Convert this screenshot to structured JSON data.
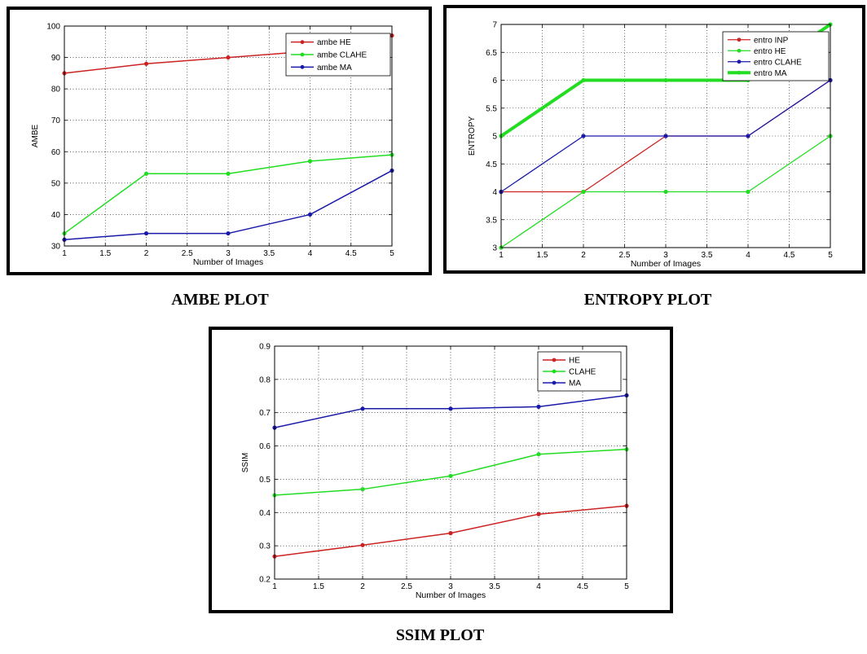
{
  "captions": {
    "ambe": "AMBE PLOT",
    "entropy": "ENTROPY PLOT",
    "ssim": "SSIM PLOT"
  },
  "chart_data": [
    {
      "id": "ambe",
      "type": "line",
      "xlabel": "Number of Images",
      "ylabel": "AMBE",
      "xlim": [
        1,
        5
      ],
      "ylim": [
        30,
        100
      ],
      "xticks": [
        1,
        1.5,
        2,
        2.5,
        3,
        3.5,
        4,
        4.5,
        5
      ],
      "yticks": [
        30,
        40,
        50,
        60,
        70,
        80,
        90,
        100
      ],
      "grid": true,
      "legend_position": "top-right",
      "x": [
        1,
        2,
        3,
        4,
        5
      ],
      "series": [
        {
          "name": "ambe HE",
          "color": "#cc2222",
          "width": 1.5,
          "values": [
            85,
            88,
            90,
            92,
            97
          ]
        },
        {
          "name": "ambe CLAHE",
          "color": "#22dd22",
          "width": 1.5,
          "values": [
            34,
            53,
            53,
            57,
            59
          ]
        },
        {
          "name": "ambe MA",
          "color": "#1a1aaa",
          "width": 1.5,
          "values": [
            32,
            34,
            34,
            40,
            54
          ]
        }
      ]
    },
    {
      "id": "entropy",
      "type": "line",
      "xlabel": "Number of Images",
      "ylabel": "ENTROPY",
      "xlim": [
        1,
        5
      ],
      "ylim": [
        3,
        7
      ],
      "xticks": [
        1,
        1.5,
        2,
        2.5,
        3,
        3.5,
        4,
        4.5,
        5
      ],
      "yticks": [
        3,
        3.5,
        4,
        4.5,
        5,
        5.5,
        6,
        6.5,
        7
      ],
      "grid": true,
      "legend_position": "top-right",
      "x": [
        1,
        2,
        3,
        4,
        5
      ],
      "series": [
        {
          "name": "entro INP",
          "color": "#cc2222",
          "width": 1.3,
          "values": [
            4,
            4,
            5,
            5,
            6
          ]
        },
        {
          "name": "entro HE",
          "color": "#22dd22",
          "width": 1.3,
          "values": [
            3,
            4,
            4,
            4,
            5
          ]
        },
        {
          "name": "entro CLAHE",
          "color": "#1a1aaa",
          "width": 1.3,
          "values": [
            4,
            5,
            5,
            5,
            6
          ]
        },
        {
          "name": "entro MA",
          "color": "#22dd22",
          "width": 4,
          "values": [
            5,
            6,
            6,
            6,
            7
          ]
        }
      ]
    },
    {
      "id": "ssim",
      "type": "line",
      "xlabel": "Number of Images",
      "ylabel": "SSIM",
      "xlim": [
        1,
        5
      ],
      "ylim": [
        0.2,
        0.9
      ],
      "xticks": [
        1,
        1.5,
        2,
        2.5,
        3,
        3.5,
        4,
        4.5,
        5
      ],
      "yticks": [
        0.2,
        0.3,
        0.4,
        0.5,
        0.6,
        0.7,
        0.8,
        0.9
      ],
      "grid": true,
      "legend_position": "top-right",
      "x": [
        1,
        2,
        3,
        4,
        5
      ],
      "series": [
        {
          "name": "HE",
          "color": "#cc2222",
          "width": 1.5,
          "values": [
            0.268,
            0.302,
            0.338,
            0.395,
            0.42
          ]
        },
        {
          "name": "CLAHE",
          "color": "#22dd22",
          "width": 1.5,
          "values": [
            0.452,
            0.47,
            0.51,
            0.575,
            0.59
          ]
        },
        {
          "name": "MA",
          "color": "#1a1aaa",
          "width": 1.5,
          "values": [
            0.655,
            0.712,
            0.712,
            0.718,
            0.752
          ]
        }
      ]
    }
  ]
}
